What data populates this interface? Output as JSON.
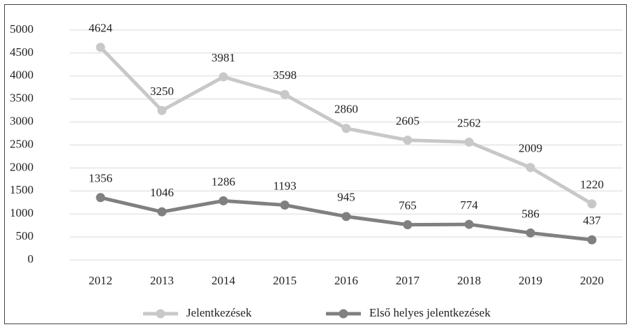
{
  "chart_data": {
    "type": "line",
    "categories": [
      "2012",
      "2013",
      "2014",
      "2015",
      "2016",
      "2017",
      "2018",
      "2019",
      "2020"
    ],
    "series": [
      {
        "name": "Jelentkezések",
        "color": "#c8c8c8",
        "values": [
          4624,
          3250,
          3981,
          3598,
          2860,
          2605,
          2562,
          2009,
          1220
        ]
      },
      {
        "name": "Első helyes jelentkezések",
        "color": "#808080",
        "values": [
          1356,
          1046,
          1286,
          1193,
          945,
          765,
          774,
          586,
          437
        ]
      }
    ],
    "ylim": [
      0,
      5000
    ],
    "yticks": [
      0,
      500,
      1000,
      1500,
      2000,
      2500,
      3000,
      3500,
      4000,
      4500,
      5000
    ],
    "grid": true,
    "legend": "bottom"
  }
}
